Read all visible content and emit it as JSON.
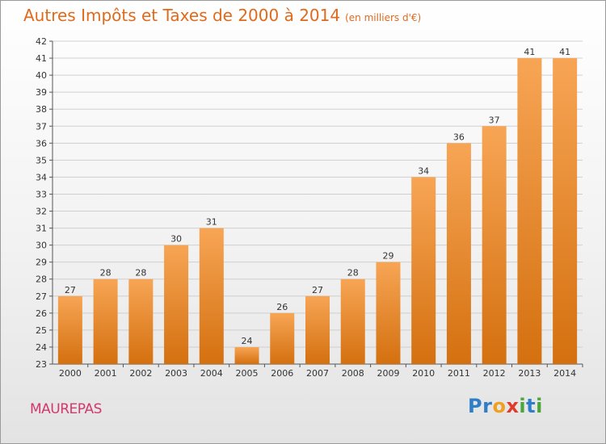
{
  "chart_data": {
    "type": "bar",
    "title": "Autres Impôts et Taxes de 2000 à 2014",
    "subtitle": "(en milliers d'€)",
    "categories": [
      "2000",
      "2001",
      "2002",
      "2003",
      "2004",
      "2005",
      "2006",
      "2007",
      "2008",
      "2009",
      "2010",
      "2011",
      "2012",
      "2013",
      "2014"
    ],
    "values": [
      27,
      28,
      28,
      30,
      31,
      24,
      26,
      27,
      28,
      29,
      34,
      36,
      37,
      41,
      41
    ],
    "ylim": [
      23,
      42
    ],
    "yticks": [
      23,
      24,
      25,
      26,
      27,
      28,
      29,
      30,
      31,
      32,
      33,
      34,
      35,
      36,
      37,
      38,
      39,
      40,
      41,
      42
    ],
    "grid": true,
    "bar_color": "#f08a30"
  },
  "city": "MAUREPAS",
  "logo": {
    "text": "Proxiti",
    "letters": [
      {
        "ch": "P",
        "color": "#2f7fc8"
      },
      {
        "ch": "r",
        "color": "#2f7fc8"
      },
      {
        "ch": "o",
        "color": "#f0a020"
      },
      {
        "ch": "x",
        "color": "#e23a2a"
      },
      {
        "ch": "i",
        "color": "#4aa63a"
      },
      {
        "ch": "t",
        "color": "#2f7fc8"
      },
      {
        "ch": "i",
        "color": "#4aa63a"
      }
    ]
  }
}
